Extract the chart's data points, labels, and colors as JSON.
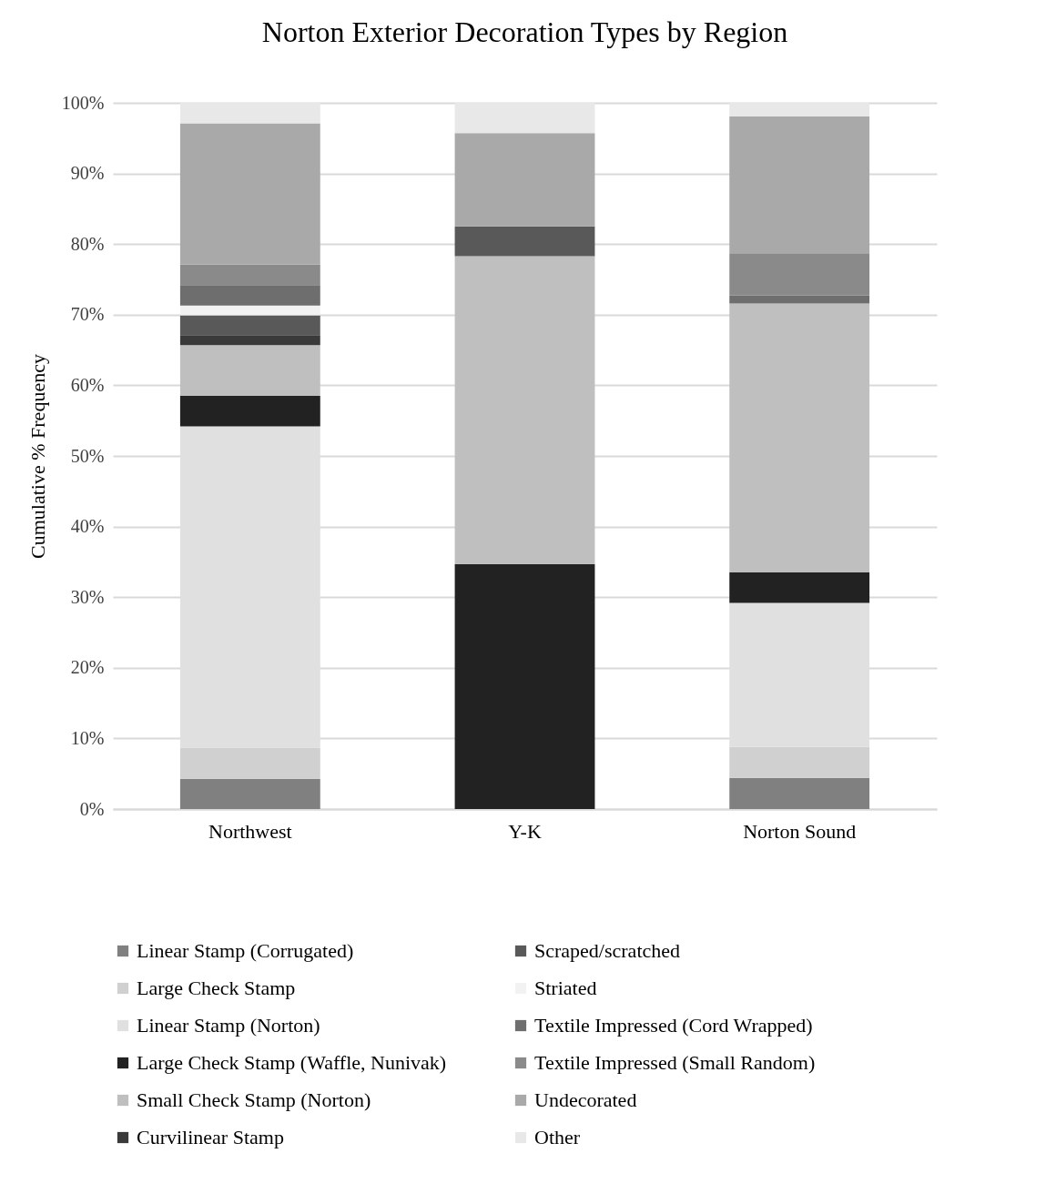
{
  "chart_data": {
    "type": "bar",
    "stacked": true,
    "title": "Norton Exterior Decoration Types by Region",
    "ylabel": "Cumulative % Frequency",
    "categories": [
      "Northwest",
      "Y-K",
      "Norton Sound"
    ],
    "series": [
      {
        "name": "Linear Stamp (Corrugated)",
        "color": "#808080",
        "values": [
          4.3,
          0,
          4.4
        ]
      },
      {
        "name": "Large Check Stamp",
        "color": "#d0d0d0",
        "values": [
          4.4,
          0,
          4.4
        ]
      },
      {
        "name": "Linear Stamp (Norton)",
        "color": "#e0e0e0",
        "values": [
          45.5,
          0,
          20.4
        ]
      },
      {
        "name": "Large Check Stamp (Waffle, Nunivak)",
        "color": "#222222",
        "values": [
          4.3,
          34.7,
          4.3
        ]
      },
      {
        "name": "Small Check Stamp (Norton)",
        "color": "#bfbfbf",
        "values": [
          7.2,
          43.6,
          38.1
        ]
      },
      {
        "name": "Curvilinear Stamp",
        "color": "#3a3a3a",
        "values": [
          1.4,
          0,
          0
        ]
      },
      {
        "name": "Scraped/scratched",
        "color": "#595959",
        "values": [
          2.8,
          4.2,
          0
        ]
      },
      {
        "name": "Striated",
        "color": "#f2f2f2",
        "values": [
          1.4,
          0,
          0
        ]
      },
      {
        "name": "Textile Impressed (Cord Wrapped)",
        "color": "#6e6e6e",
        "values": [
          2.9,
          0,
          1.1
        ]
      },
      {
        "name": "Textile Impressed (Small Random)",
        "color": "#8a8a8a",
        "values": [
          2.9,
          0,
          6.0
        ]
      },
      {
        "name": "Undecorated",
        "color": "#a9a9a9",
        "values": [
          20.0,
          13.2,
          19.4
        ]
      },
      {
        "name": "Other",
        "color": "#e8e8e8",
        "values": [
          2.9,
          4.3,
          1.9
        ]
      }
    ],
    "ylim": [
      0,
      100
    ],
    "yticks": [
      {
        "value": 0,
        "label": "0%"
      },
      {
        "value": 10,
        "label": "10%"
      },
      {
        "value": 20,
        "label": "20%"
      },
      {
        "value": 30,
        "label": "30%"
      },
      {
        "value": 40,
        "label": "40%"
      },
      {
        "value": 50,
        "label": "50%"
      },
      {
        "value": 60,
        "label": "60%"
      },
      {
        "value": 70,
        "label": "70%"
      },
      {
        "value": 80,
        "label": "80%"
      },
      {
        "value": 90,
        "label": "90%"
      },
      {
        "value": 100,
        "label": "100%"
      }
    ],
    "grid": "y",
    "legend": "bottom"
  }
}
